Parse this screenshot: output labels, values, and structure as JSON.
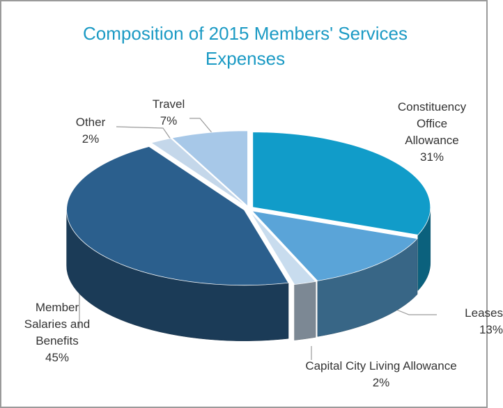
{
  "chart_data": {
    "type": "pie",
    "title": "Composition of 2015 Members' Services Expenses",
    "categories": [
      "Constituency Office Allowance",
      "Leases",
      "Capital City Living Allowance",
      "Member Salaries and Benefits",
      "Other",
      "Travel"
    ],
    "values": [
      31,
      13,
      2,
      45,
      2,
      7
    ],
    "value_labels": [
      "31%",
      "13%",
      "2%",
      "45%",
      "2%",
      "7%"
    ],
    "colors": [
      "#119cc9",
      "#5aa4d8",
      "#c8dcee",
      "#2b5f8d",
      "#c4d7ea",
      "#a7c8e8"
    ]
  }
}
